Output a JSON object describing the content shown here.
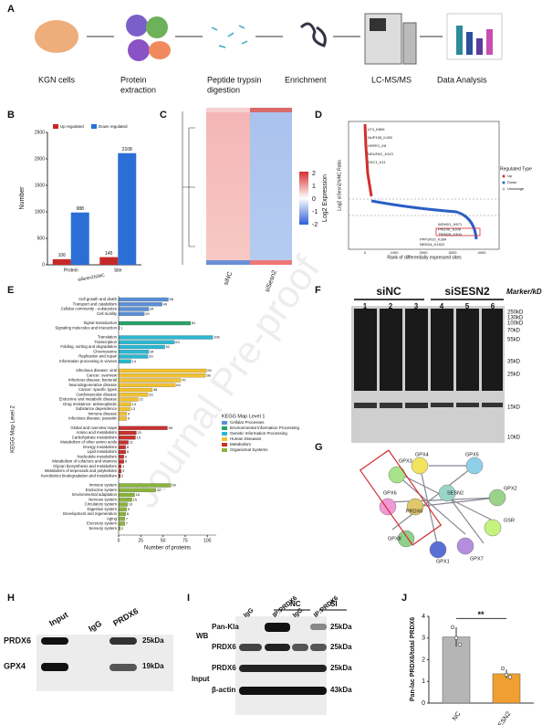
{
  "panel_letters": [
    "A",
    "B",
    "C",
    "D",
    "E",
    "F",
    "G",
    "H",
    "I",
    "J"
  ],
  "workflow": {
    "steps": [
      [
        "KGN cells"
      ],
      [
        "Protein",
        "extraction"
      ],
      [
        "Peptide trypsin",
        "digestion"
      ],
      [
        "Enrichment"
      ],
      [
        "LC-MS/MS"
      ],
      [
        "Data Analysis"
      ]
    ]
  },
  "heatmap": {
    "columns": [
      "siNC",
      "siSesn2"
    ],
    "colorbar_label": "Log2 Expression",
    "colorbar_ticks": [
      "2",
      "1",
      "0",
      "-1",
      "-2"
    ]
  },
  "volcano": {
    "y_label": "Log2 siSesn2/siNC Ratio",
    "x_label": "Rank of differentially expressed sites",
    "xticks": [
      "0",
      "1000",
      "2000",
      "3000",
      "4000"
    ],
    "legend_title": "Regulated Type",
    "legend": [
      "Up",
      "Down",
      "Unchange"
    ],
    "up_labels": [
      "LF3_K806",
      "NUP155_K155",
      "HSPE1_K8",
      "NDUFAC_K113",
      "CKC1_K11"
    ],
    "down_labels": [
      "WDHD1_K671",
      "PRDX6_K209",
      "TRIM28_K304",
      "PPP1R10_K284",
      "NEDD4_K1522"
    ]
  },
  "gel": {
    "groups": [
      "siNC",
      "siSESN2"
    ],
    "lanes": [
      "1",
      "2",
      "3",
      "4",
      "5",
      "6"
    ],
    "marker_title": "Marker/kD",
    "markers": [
      "250kD",
      "130kD",
      "100kD",
      "70kD",
      "55kD",
      "35kD",
      "25kD",
      "15kD",
      "10kD"
    ]
  },
  "network": {
    "nodes": [
      "GPX4",
      "GPX5",
      "GPX2",
      "GSR",
      "GPX7",
      "GPX3",
      "PRDX6",
      "GPX1",
      "GPX8",
      "GPX6",
      "SESN2"
    ]
  },
  "co_ip_h": {
    "lanes": [
      "Input",
      "IgG",
      "PRDX6"
    ],
    "rows": [
      "PRDX6",
      "GPX4"
    ],
    "sizes": [
      "25kDa",
      "19kDa"
    ]
  },
  "co_ip_i": {
    "groups": [
      "NC",
      "SI"
    ],
    "lanes": [
      "IgG",
      "IP:PRDX6",
      "IgG",
      "IP:PRDX6"
    ],
    "sections": [
      "WB",
      "Input"
    ],
    "wb_rows": [
      "Pan-Kla",
      "PRDX6"
    ],
    "wb_sizes": [
      "25kDa",
      "25kDa"
    ],
    "input_rows": [
      "PRDX6",
      "β-actin"
    ],
    "input_sizes": [
      "25kDa",
      "43kDa"
    ]
  },
  "watermark": "Journal Pre-proof",
  "chart_data": [
    {
      "type": "bar",
      "categories": [
        "Protein",
        "Site"
      ],
      "x_label": "siSesn2/siNC",
      "y_label": "Number",
      "series": [
        {
          "name": "Up regulated",
          "color": "#c62828",
          "values": [
            106,
            145
          ]
        },
        {
          "name": "Down regulated",
          "color": "#2b6fd6",
          "values": [
            988,
            2108
          ]
        }
      ],
      "ylim": [
        0,
        2500
      ],
      "yticks": [
        0,
        500,
        1000,
        1500,
        2000,
        2500
      ]
    },
    {
      "type": "barh",
      "y_label": "KEGG Map Level 2",
      "x_label": "Number of proteins",
      "legend_title": "KEGG Map Level 1",
      "xlim": [
        0,
        110
      ],
      "xticks": [
        0,
        25,
        50,
        75,
        100
      ],
      "series": [
        {
          "name": "Cellular Processes",
          "color": "#5b8fd6",
          "categories": [
            "Cell growth and death",
            "Transport and catabolism",
            "Cellular community - eukaryotes",
            "Cell motility"
          ],
          "values": [
            56,
            49,
            34,
            29
          ]
        },
        {
          "name": "Environmental Information Processing",
          "color": "#2aa36b",
          "categories": [
            "Signal transduction",
            "Signaling molecules and interaction"
          ],
          "values": [
            81,
            1
          ]
        },
        {
          "name": "Genetic Information Processing",
          "color": "#2bb7d1",
          "categories": [
            "Translation",
            "Transcription",
            "Folding, sorting and degradation",
            "Chromosome",
            "Replication and repair",
            "Information processing in viruses"
          ],
          "values": [
            106,
            63,
            52,
            34,
            33,
            14
          ]
        },
        {
          "name": "Human Diseases",
          "color": "#f2c12e",
          "categories": [
            "Infectious disease: viral",
            "Cancer: overview",
            "Infectious disease: bacterial",
            "Neurodegenerative disease",
            "Cancer: specific types",
            "Cardiovascular disease",
            "Endocrine and metabolic disease",
            "Drug resistance: antineoplastic",
            "Substance dependence",
            "Immune disease",
            "Infectious disease: parasitic"
          ],
          "values": [
            99,
            98,
            70,
            64,
            38,
            33,
            22,
            14,
            13,
            9,
            9
          ]
        },
        {
          "name": "Metabolism",
          "color": "#c8302c",
          "categories": [
            "Global and overview maps",
            "Amino acid metabolism",
            "Carbohydrate metabolism",
            "Metabolism of other amino acids",
            "Energy metabolism",
            "Lipid metabolism",
            "Nucleotide metabolism",
            "Metabolism of cofactors and vitamins",
            "Glycan biosynthesis and metabolism",
            "Metabolism of terpenoids and polyketides",
            "Xenobiotics biodegradation and metabolism"
          ],
          "values": [
            55,
            20,
            19,
            11,
            8,
            8,
            6,
            6,
            3,
            3,
            2
          ]
        },
        {
          "name": "Organismal Systems",
          "color": "#8ab43a",
          "categories": [
            "Immune system",
            "Endocrine system",
            "Environmental adaptation",
            "Nervous system",
            "Circulatory system",
            "Digestive system",
            "Development and regeneration",
            "Aging",
            "Excretory system",
            "Sensory system"
          ],
          "values": [
            59,
            42,
            18,
            15,
            10,
            9,
            8,
            7,
            7,
            2
          ]
        }
      ]
    },
    {
      "type": "bar",
      "categories": [
        "NC",
        "siSESN2"
      ],
      "values": [
        3.05,
        1.35
      ],
      "errors": [
        0.45,
        0.2
      ],
      "points": [
        [
          3.5,
          3.0,
          2.7
        ],
        [
          1.6,
          1.3,
          1.2
        ]
      ],
      "colors": [
        "#b5b5b5",
        "#f0a030"
      ],
      "y_label": "Pan-lac PRDX6/total PRDX6",
      "annotation": "**",
      "ylim": [
        0,
        4
      ],
      "yticks": [
        0,
        1,
        2,
        3,
        4
      ]
    }
  ]
}
